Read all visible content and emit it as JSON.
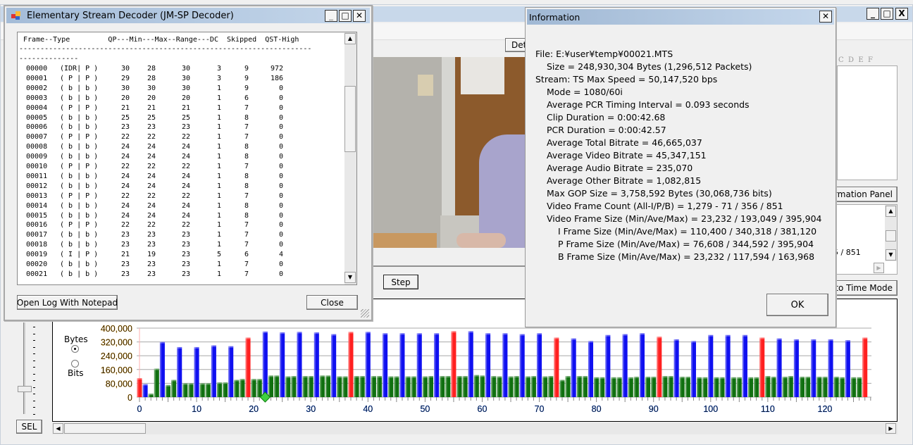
{
  "main_window": {
    "controls": {
      "minimize": "_",
      "maximize": "□",
      "close": "X"
    },
    "details_button": "Det",
    "step_button": "Step",
    "sel_button": "SEL",
    "hex_header": "C  D  E  F",
    "info_panel_button": "ormation Panel",
    "time_mode_button": "to Time Mode",
    "list_text": "5 / 851",
    "unit_bytes": "Bytes",
    "unit_bits": "Bits",
    "unit_selected": "Bytes"
  },
  "decoder": {
    "title": "Elementary Stream Decoder (JM-SP Decoder)",
    "header": " Frame--Type         QP---Min---Max--Range---DC  Skipped  QST-High",
    "separator": "---------------------------------------------------------------------\n--------------",
    "rows": [
      [
        "00000",
        "(IDR| P )",
        "30",
        "28",
        "30",
        "3",
        "9",
        "972"
      ],
      [
        "00001",
        "( P | P )",
        "29",
        "28",
        "30",
        "3",
        "9",
        "186"
      ],
      [
        "00002",
        "( b | b )",
        "30",
        "30",
        "30",
        "1",
        "9",
        "0"
      ],
      [
        "00003",
        "( b | b )",
        "20",
        "20",
        "20",
        "1",
        "6",
        "0"
      ],
      [
        "00004",
        "( P | P )",
        "21",
        "21",
        "21",
        "1",
        "7",
        "0"
      ],
      [
        "00005",
        "( b | b )",
        "25",
        "25",
        "25",
        "1",
        "8",
        "0"
      ],
      [
        "00006",
        "( b | b )",
        "23",
        "23",
        "23",
        "1",
        "7",
        "0"
      ],
      [
        "00007",
        "( P | P )",
        "22",
        "22",
        "22",
        "1",
        "7",
        "0"
      ],
      [
        "00008",
        "( b | b )",
        "24",
        "24",
        "24",
        "1",
        "8",
        "0"
      ],
      [
        "00009",
        "( b | b )",
        "24",
        "24",
        "24",
        "1",
        "8",
        "0"
      ],
      [
        "00010",
        "( P | P )",
        "22",
        "22",
        "22",
        "1",
        "7",
        "0"
      ],
      [
        "00011",
        "( b | b )",
        "24",
        "24",
        "24",
        "1",
        "8",
        "0"
      ],
      [
        "00012",
        "( b | b )",
        "24",
        "24",
        "24",
        "1",
        "8",
        "0"
      ],
      [
        "00013",
        "( P | P )",
        "22",
        "22",
        "22",
        "1",
        "7",
        "0"
      ],
      [
        "00014",
        "( b | b )",
        "24",
        "24",
        "24",
        "1",
        "8",
        "0"
      ],
      [
        "00015",
        "( b | b )",
        "24",
        "24",
        "24",
        "1",
        "8",
        "0"
      ],
      [
        "00016",
        "( P | P )",
        "22",
        "22",
        "22",
        "1",
        "7",
        "0"
      ],
      [
        "00017",
        "( b | b )",
        "23",
        "23",
        "23",
        "1",
        "7",
        "0"
      ],
      [
        "00018",
        "( b | b )",
        "23",
        "23",
        "23",
        "1",
        "7",
        "0"
      ],
      [
        "00019",
        "( I | P )",
        "21",
        "19",
        "23",
        "5",
        "6",
        "4"
      ],
      [
        "00020",
        "( b | b )",
        "23",
        "23",
        "23",
        "1",
        "7",
        "0"
      ],
      [
        "00021",
        "( b | b )",
        "23",
        "23",
        "23",
        "1",
        "7",
        "0"
      ]
    ],
    "open_log_button": "Open Log With Notepad",
    "close_button": "Close"
  },
  "info": {
    "title": "Information",
    "ok_button": "OK",
    "lines": [
      "File: E:¥user¥temp¥00021.MTS",
      "Size = 248,930,304 Bytes (1,296,512 Packets)",
      "Stream: TS Max Speed = 50,147,520 bps",
      "Mode = 1080/60i",
      "Average PCR Timing Interval = 0.093 seconds",
      "Clip Duration = 0:00:42.68",
      "PCR Duration = 0:00:42.57",
      "Average Total Bitrate = 46,665,037",
      "Average Video Bitrate = 45,347,151",
      "Average Audio Bitrate = 235,070",
      "Average Other Bitrate = 1,082,815",
      "Max GOP Size = 3,758,592 Bytes (30,068,736 bits)",
      "Video Frame Count (All-I/P/B) = 1,279 - 71 / 356 / 851",
      "Video Frame Size (Min/Ave/Max) = 23,232 / 193,049 / 395,904",
      "I Frame Size (Min/Ave/Max) = 110,400 / 340,318 / 381,120",
      "P Frame Size (Min/Ave/Max) = 76,608 / 344,592 / 395,904",
      "B Frame Size (Min/Ave/Max) = 23,232 / 117,594 / 163,968"
    ]
  },
  "chart_data": {
    "type": "bar",
    "xlabel": "",
    "ylabel": "",
    "ylim": [
      0,
      400000
    ],
    "xlim": [
      0,
      128
    ],
    "grid": true,
    "yticks": [
      "0",
      "80,000",
      "160,000",
      "240,000",
      "320,000",
      "400,000"
    ],
    "xticks": [
      "0",
      "10",
      "20",
      "30",
      "40",
      "50",
      "60",
      "70",
      "80",
      "90",
      "100",
      "110",
      "120"
    ],
    "colors": {
      "I": "#ff2020",
      "P": "#1010f0",
      "b": "#107010"
    },
    "cursor_frame": 22,
    "types": "IPbbPbbPbbPbbPbbPbbIbbPbbPbbPbbPbbPbbIbbPbbPbbPbbPbbPbbIbbPbbPbbPbbPbbPbbIbbPbbPbbPbbPbbPbbIbbPbbPbbPbbPbbPbbIbbPbbPbbPbbPbbPbbI",
    "values": [
      110000,
      75000,
      20000,
      165000,
      320000,
      70000,
      100000,
      290000,
      80000,
      80000,
      290000,
      80000,
      80000,
      300000,
      85000,
      85000,
      295000,
      100000,
      105000,
      345000,
      105000,
      105000,
      380000,
      125000,
      125000,
      375000,
      120000,
      122000,
      378000,
      122000,
      122000,
      375000,
      125000,
      125000,
      365000,
      120000,
      120000,
      378000,
      122000,
      122000,
      378000,
      122000,
      122000,
      370000,
      120000,
      120000,
      370000,
      120000,
      120000,
      370000,
      120000,
      122000,
      370000,
      122000,
      122000,
      382000,
      122000,
      122000,
      382000,
      128000,
      125000,
      370000,
      122000,
      120000,
      370000,
      120000,
      122000,
      365000,
      120000,
      122000,
      370000,
      120000,
      122000,
      345000,
      100000,
      122000,
      340000,
      122000,
      122000,
      325000,
      115000,
      115000,
      360000,
      115000,
      115000,
      365000,
      115000,
      118000,
      370000,
      118000,
      118000,
      350000,
      122000,
      122000,
      335000,
      118000,
      118000,
      325000,
      115000,
      115000,
      360000,
      115000,
      115000,
      360000,
      115000,
      115000,
      360000,
      115000,
      115000,
      345000,
      122000,
      118000,
      340000,
      118000,
      122000,
      335000,
      118000,
      118000,
      335000,
      118000,
      118000,
      335000,
      118000,
      115000,
      330000,
      115000,
      115000,
      345000
    ]
  }
}
